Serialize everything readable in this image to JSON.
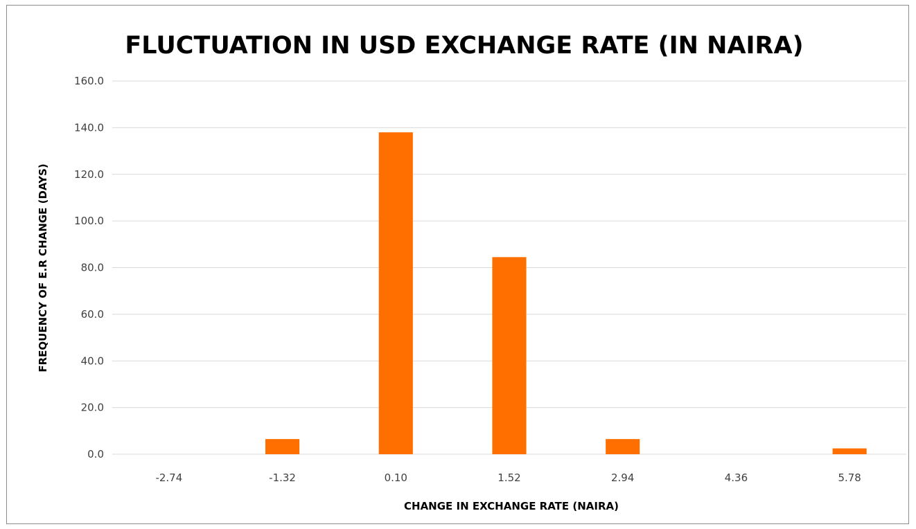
{
  "chart_data": {
    "type": "bar",
    "title": "FLUCTUATION IN USD EXCHANGE RATE (IN NAIRA)",
    "xlabel": "CHANGE IN EXCHANGE RATE (NAIRA)",
    "ylabel": "FREQUENCY  OF E.R CHANGE (DAYS)",
    "categories": [
      "-2.74",
      "-1.32",
      "0.10",
      "1.52",
      "2.94",
      "4.36",
      "5.78"
    ],
    "values": [
      0,
      6.5,
      138,
      84.5,
      6.5,
      0,
      2.5
    ],
    "ylim": [
      0,
      160
    ],
    "yticks": [
      "0.0",
      "20.0",
      "40.0",
      "60.0",
      "80.0",
      "100.0",
      "120.0",
      "140.0",
      "160.0"
    ],
    "grid": true,
    "legend": "none",
    "bar_color": "#ff6f00",
    "grid_color": "#d9d9d9"
  }
}
